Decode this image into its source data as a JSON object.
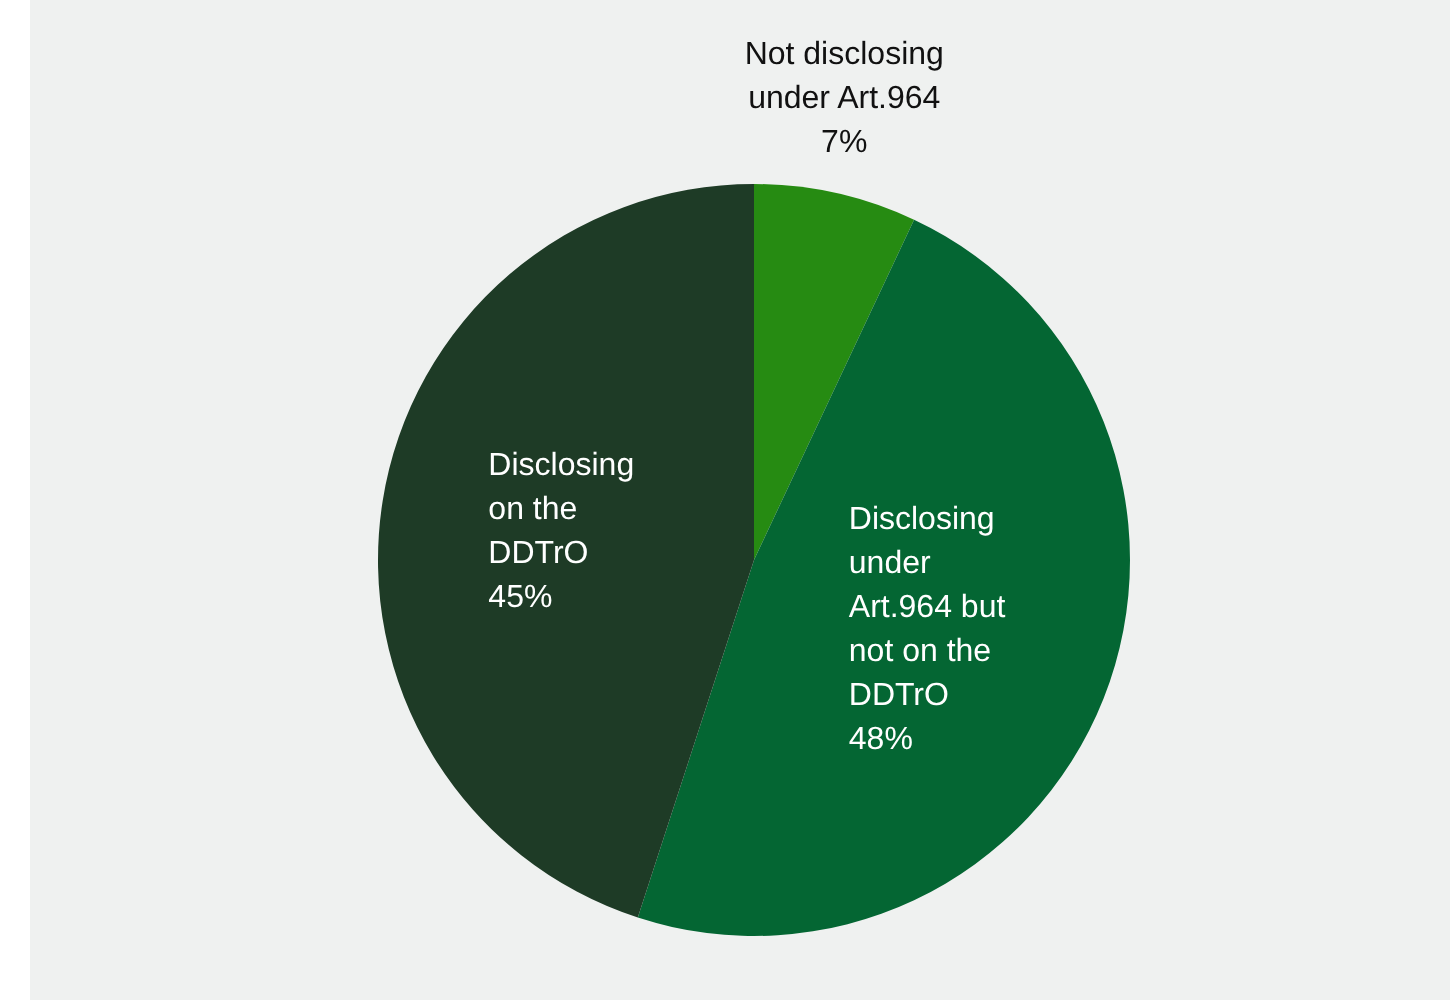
{
  "chart_data": {
    "type": "pie",
    "categories": [
      "Not disclosing under Art.964",
      "Disclosing under Art.964 but not on the DDTrO",
      "Disclosing on the DDTrO"
    ],
    "values": [
      7,
      48,
      45
    ],
    "value_labels": [
      "7%",
      "48%",
      "45%"
    ],
    "colors": [
      "#268b12",
      "#046633",
      "#1e3b26"
    ]
  }
}
